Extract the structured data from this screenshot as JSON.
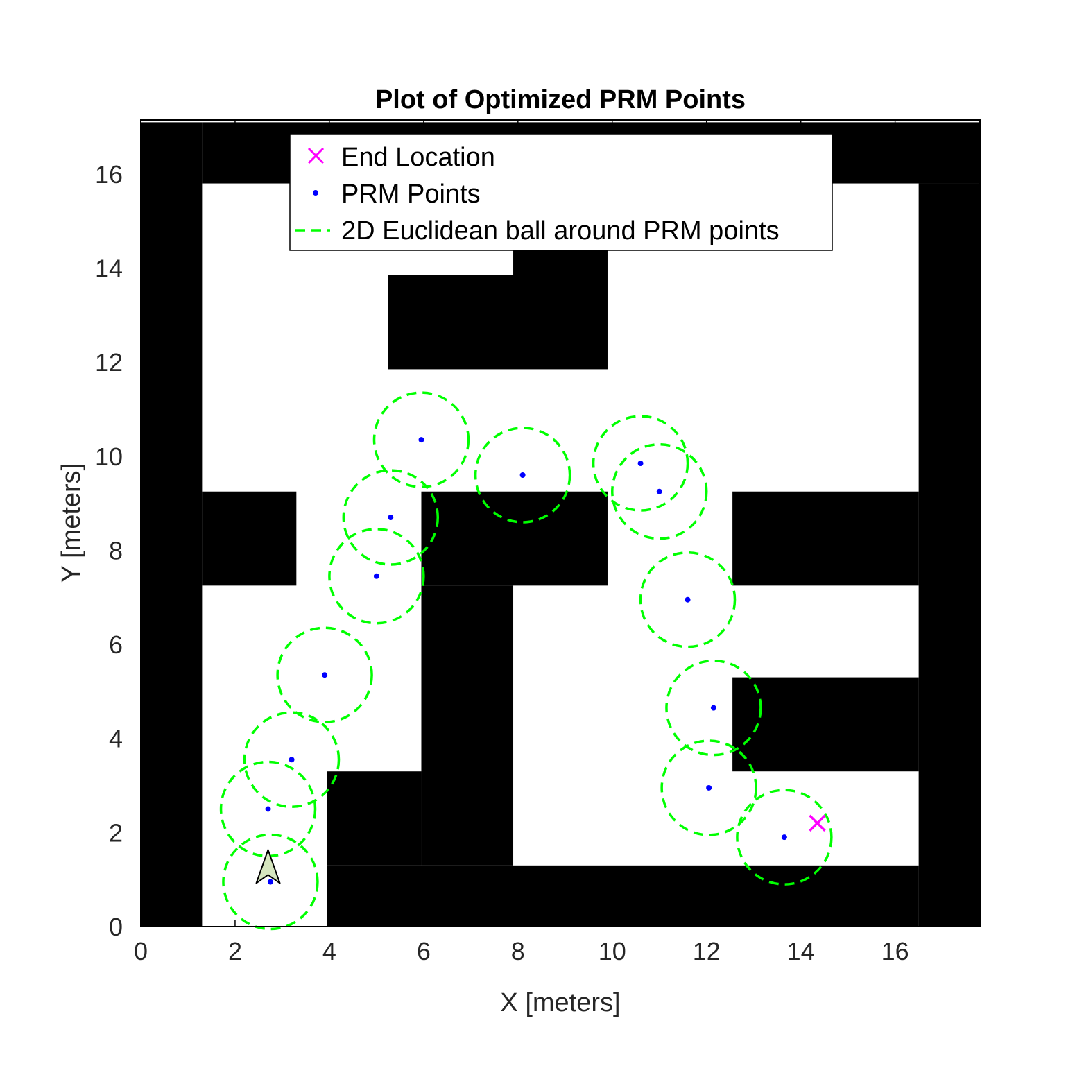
{
  "chart_data": {
    "type": "scatter",
    "title": "Plot of Optimized PRM Points",
    "xlabel": "X [meters]",
    "ylabel": "Y [meters]",
    "xlim": [
      0,
      17.8
    ],
    "ylim": [
      0,
      17.15
    ],
    "xticks": [
      "0",
      "2",
      "4",
      "6",
      "8",
      "10",
      "12",
      "14",
      "16"
    ],
    "yticks": [
      "0",
      "2",
      "4",
      "6",
      "8",
      "10",
      "12",
      "14",
      "16"
    ],
    "grid": false,
    "legend_position": "top-center",
    "legend": [
      {
        "label": "End Location",
        "marker": "x",
        "color": "#ff00ff"
      },
      {
        "label": "PRM Points",
        "marker": "dot",
        "color": "#0000ff"
      },
      {
        "label": "2D Euclidean ball around PRM points",
        "marker": "dashed-line",
        "color": "#00ff00"
      }
    ],
    "colors": {
      "obstacle": "#000000",
      "free_space": "#ffffff",
      "prm_point": "#0000ff",
      "ball": "#00ff00",
      "end_marker": "#ff00ff",
      "robot_fill": "#d6e6bf"
    },
    "obstacles": [
      {
        "x0": 0,
        "y0": 0,
        "x1": 1.3,
        "y1": 17.1
      },
      {
        "x0": 1.3,
        "y0": 15.8,
        "x1": 17.8,
        "y1": 17.1
      },
      {
        "x0": 16.5,
        "y0": 0,
        "x1": 17.8,
        "y1": 15.8
      },
      {
        "x0": 3.95,
        "y0": 0,
        "x1": 16.5,
        "y1": 1.3
      },
      {
        "x0": 1.3,
        "y0": 7.25,
        "x1": 3.3,
        "y1": 9.25
      },
      {
        "x0": 5.25,
        "y0": 11.85,
        "x1": 9.9,
        "y1": 13.85
      },
      {
        "x0": 7.9,
        "y0": 13.85,
        "x1": 9.9,
        "y1": 15.8
      },
      {
        "x0": 5.95,
        "y0": 7.25,
        "x1": 9.9,
        "y1": 9.25
      },
      {
        "x0": 5.95,
        "y0": 1.3,
        "x1": 7.9,
        "y1": 7.25
      },
      {
        "x0": 3.95,
        "y0": 1.3,
        "x1": 5.95,
        "y1": 3.3
      },
      {
        "x0": 12.55,
        "y0": 7.25,
        "x1": 16.5,
        "y1": 9.25
      },
      {
        "x0": 12.55,
        "y0": 3.3,
        "x1": 16.5,
        "y1": 5.3
      }
    ],
    "prm_points": [
      {
        "x": 2.75,
        "y": 0.95
      },
      {
        "x": 2.7,
        "y": 2.5
      },
      {
        "x": 3.2,
        "y": 3.55
      },
      {
        "x": 3.9,
        "y": 5.35
      },
      {
        "x": 5.0,
        "y": 7.45
      },
      {
        "x": 5.3,
        "y": 8.7
      },
      {
        "x": 5.95,
        "y": 10.35
      },
      {
        "x": 8.1,
        "y": 9.6
      },
      {
        "x": 10.6,
        "y": 9.85
      },
      {
        "x": 11.0,
        "y": 9.25
      },
      {
        "x": 11.6,
        "y": 6.95
      },
      {
        "x": 12.15,
        "y": 4.65
      },
      {
        "x": 12.05,
        "y": 2.95
      },
      {
        "x": 13.65,
        "y": 1.9
      }
    ],
    "ball_radius": 1.0,
    "end_location": {
      "x": 14.35,
      "y": 2.2
    },
    "start_location": {
      "x": 2.7,
      "y": 1.1
    }
  }
}
